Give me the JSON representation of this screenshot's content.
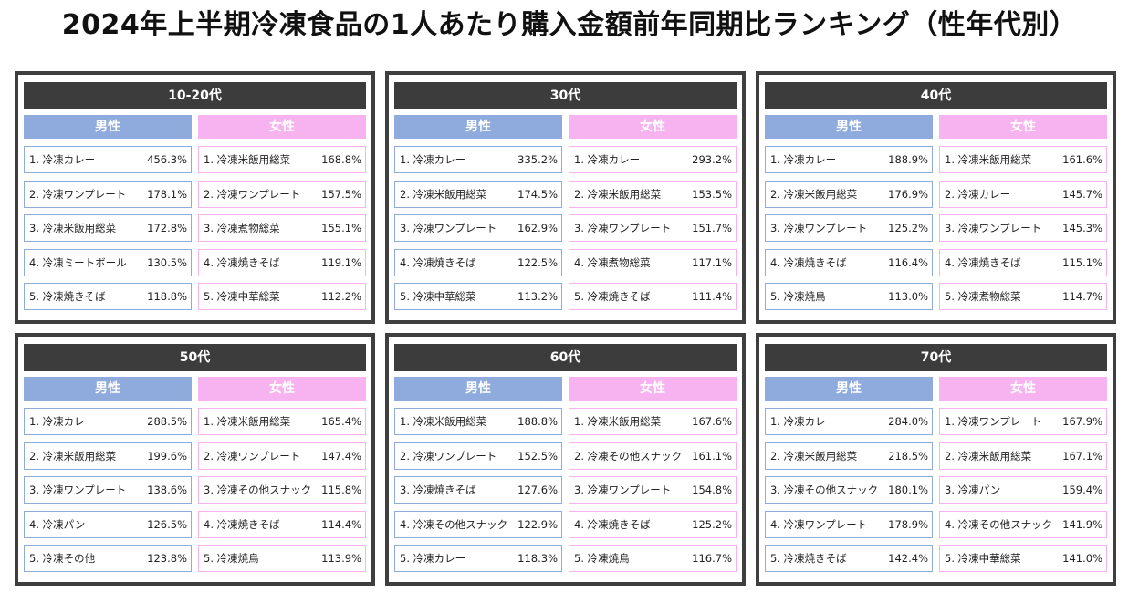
{
  "title": "2024年上半期冷凍食品の1人あたり購入金額前年同期比ランキング（性年代別）",
  "male_label": "男性",
  "female_label": "女性",
  "panels": [
    {
      "age": "10-20代",
      "male": [
        {
          "rank": "1. 冷凍カレー",
          "pct": "456.3%"
        },
        {
          "rank": "2. 冷凍ワンプレート",
          "pct": "178.1%"
        },
        {
          "rank": "3. 冷凍米飯用総菜",
          "pct": "172.8%"
        },
        {
          "rank": "4. 冷凍ミートボール",
          "pct": "130.5%"
        },
        {
          "rank": "5. 冷凍焼きそば",
          "pct": "118.8%"
        }
      ],
      "female": [
        {
          "rank": "1. 冷凍米飯用総菜",
          "pct": "168.8%"
        },
        {
          "rank": "2. 冷凍ワンプレート",
          "pct": "157.5%"
        },
        {
          "rank": "3. 冷凍煮物総菜",
          "pct": "155.1%"
        },
        {
          "rank": "4. 冷凍焼きそば",
          "pct": "119.1%"
        },
        {
          "rank": "5. 冷凍中華総菜",
          "pct": "112.2%"
        }
      ]
    },
    {
      "age": "30代",
      "male": [
        {
          "rank": "1. 冷凍カレー",
          "pct": "335.2%"
        },
        {
          "rank": "2. 冷凍米飯用総菜",
          "pct": "174.5%"
        },
        {
          "rank": "3. 冷凍ワンプレート",
          "pct": "162.9%"
        },
        {
          "rank": "4. 冷凍焼きそば",
          "pct": "122.5%"
        },
        {
          "rank": "5. 冷凍中華総菜",
          "pct": "113.2%"
        }
      ],
      "female": [
        {
          "rank": "1. 冷凍カレー",
          "pct": "293.2%"
        },
        {
          "rank": "2. 冷凍米飯用総菜",
          "pct": "153.5%"
        },
        {
          "rank": "3. 冷凍ワンプレート",
          "pct": "151.7%"
        },
        {
          "rank": "4. 冷凍煮物総菜",
          "pct": "117.1%"
        },
        {
          "rank": "5. 冷凍焼きそば",
          "pct": "111.4%"
        }
      ]
    },
    {
      "age": "40代",
      "male": [
        {
          "rank": "1. 冷凍カレー",
          "pct": "188.9%"
        },
        {
          "rank": "2. 冷凍米飯用総菜",
          "pct": "176.9%"
        },
        {
          "rank": "3. 冷凍ワンプレート",
          "pct": "125.2%"
        },
        {
          "rank": "4. 冷凍焼きそば",
          "pct": "116.4%"
        },
        {
          "rank": "5. 冷凍焼鳥",
          "pct": "113.0%"
        }
      ],
      "female": [
        {
          "rank": "1. 冷凍米飯用総菜",
          "pct": "161.6%"
        },
        {
          "rank": "2. 冷凍カレー",
          "pct": "145.7%"
        },
        {
          "rank": "3. 冷凍ワンプレート",
          "pct": "145.3%"
        },
        {
          "rank": "4. 冷凍焼きそば",
          "pct": "115.1%"
        },
        {
          "rank": "5. 冷凍煮物総菜",
          "pct": "114.7%"
        }
      ]
    },
    {
      "age": "50代",
      "male": [
        {
          "rank": "1. 冷凍カレー",
          "pct": "288.5%"
        },
        {
          "rank": "2. 冷凍米飯用総菜",
          "pct": "199.6%"
        },
        {
          "rank": "3. 冷凍ワンプレート",
          "pct": "138.6%"
        },
        {
          "rank": "4. 冷凍パン",
          "pct": "126.5%"
        },
        {
          "rank": "5. 冷凍その他",
          "pct": "123.8%"
        }
      ],
      "female": [
        {
          "rank": "1. 冷凍米飯用総菜",
          "pct": "165.4%"
        },
        {
          "rank": "2. 冷凍ワンプレート",
          "pct": "147.4%"
        },
        {
          "rank": "3. 冷凍その他スナック",
          "pct": "115.8%"
        },
        {
          "rank": "4. 冷凍焼きそば",
          "pct": "114.4%"
        },
        {
          "rank": "5. 冷凍焼鳥",
          "pct": "113.9%"
        }
      ]
    },
    {
      "age": "60代",
      "male": [
        {
          "rank": "1. 冷凍米飯用総菜",
          "pct": "188.8%"
        },
        {
          "rank": "2. 冷凍ワンプレート",
          "pct": "152.5%"
        },
        {
          "rank": "3. 冷凍焼きそば",
          "pct": "127.6%"
        },
        {
          "rank": "4. 冷凍その他スナック",
          "pct": "122.9%"
        },
        {
          "rank": "5. 冷凍カレー",
          "pct": "118.3%"
        }
      ],
      "female": [
        {
          "rank": "1. 冷凍米飯用総菜",
          "pct": "167.6%"
        },
        {
          "rank": "2. 冷凍その他スナック",
          "pct": "161.1%"
        },
        {
          "rank": "3. 冷凍ワンプレート",
          "pct": "154.8%"
        },
        {
          "rank": "4. 冷凍焼きそば",
          "pct": "125.2%"
        },
        {
          "rank": "5. 冷凍焼鳥",
          "pct": "116.7%"
        }
      ]
    },
    {
      "age": "70代",
      "male": [
        {
          "rank": "1. 冷凍カレー",
          "pct": "284.0%"
        },
        {
          "rank": "2. 冷凍米飯用総菜",
          "pct": "218.5%"
        },
        {
          "rank": "3. 冷凍その他スナック",
          "pct": "180.1%"
        },
        {
          "rank": "4. 冷凍ワンプレート",
          "pct": "178.9%"
        },
        {
          "rank": "5. 冷凍焼きそば",
          "pct": "142.4%"
        }
      ],
      "female": [
        {
          "rank": "1. 冷凍ワンプレート",
          "pct": "167.9%"
        },
        {
          "rank": "2. 冷凍米飯用総菜",
          "pct": "167.1%"
        },
        {
          "rank": "3. 冷凍パン",
          "pct": "159.4%"
        },
        {
          "rank": "4. 冷凍その他スナック",
          "pct": "141.9%"
        },
        {
          "rank": "5. 冷凍中華総菜",
          "pct": "141.0%"
        }
      ]
    }
  ]
}
